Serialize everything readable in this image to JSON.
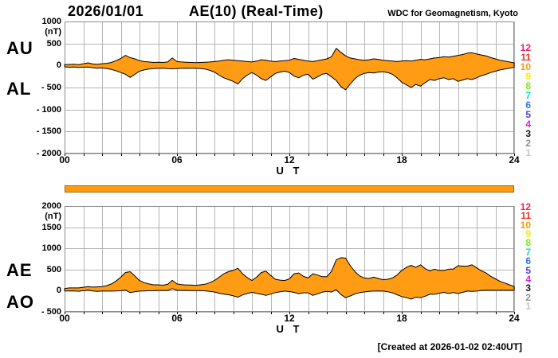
{
  "header": {
    "date": "2026/01/01",
    "title": "AE(10) (Real-Time)",
    "org": "WDC for Geomagnetism, Kyoto"
  },
  "footer": {
    "created": "[Created at 2026-01-02 02:40UT]"
  },
  "colors": {
    "band": "#FF9C14",
    "band_outline": "#000000",
    "grid": "#b4b4b4",
    "frame": "#8c8c8c",
    "bar_fill": "#FF9C14",
    "bar_border": "#a06800"
  },
  "station_scale": {
    "description": "number of reporting stations",
    "values": [
      "12",
      "11",
      "10",
      "9",
      "8",
      "7",
      "6",
      "5",
      "4",
      "3",
      "2",
      "1"
    ],
    "colors": [
      "#EE2266",
      "#F03018",
      "#FF9900",
      "#FFE800",
      "#7FE818",
      "#18D8C8",
      "#2878F0",
      "#5040D0",
      "#E818E8",
      "#181818",
      "#909090",
      "#C8C8C8"
    ],
    "active": "10"
  },
  "xaxis": {
    "label": "U T",
    "ticks": [
      {
        "h": 0,
        "label": "00"
      },
      {
        "h": 6,
        "label": "06"
      },
      {
        "h": 12,
        "label": "12"
      },
      {
        "h": 18,
        "label": "18"
      },
      {
        "h": 24,
        "label": "24"
      }
    ]
  },
  "panels": [
    {
      "name": "AU-AL",
      "unit": "(nT)",
      "left_labels": [
        "AU",
        "AL"
      ],
      "yticks": [
        {
          "v": 1000,
          "label": "1000"
        },
        {
          "v": 500,
          "label": "500"
        },
        {
          "v": 0,
          "label": "0"
        },
        {
          "v": -500,
          "label": "- 500"
        },
        {
          "v": -1000,
          "label": "- 1000"
        },
        {
          "v": -1500,
          "label": "- 1500"
        },
        {
          "v": -2000,
          "label": "- 2000"
        }
      ]
    },
    {
      "name": "AE-AO",
      "unit": "(nT)",
      "left_labels": [
        "AE",
        "AO"
      ],
      "yticks": [
        {
          "v": 2000,
          "label": "2000"
        },
        {
          "v": 1500,
          "label": "1500"
        },
        {
          "v": 1000,
          "label": "1000"
        },
        {
          "v": 500,
          "label": "500"
        },
        {
          "v": 0,
          "label": "0"
        },
        {
          "v": -500,
          "label": "- 500"
        }
      ]
    }
  ],
  "chart_data": [
    {
      "type": "area",
      "title": "AU and AL indices, 2026/01/01 (real-time, 10 stations)",
      "xlabel": "U T",
      "ylabel": "nT",
      "x_start": 0,
      "x_end": 24,
      "x_step": 0.25,
      "xlim": [
        0,
        24
      ],
      "ylim": [
        -2000,
        1000
      ],
      "ygrid_step": 500,
      "grid": true,
      "series": [
        {
          "name": "AU",
          "values": [
            20,
            25,
            30,
            20,
            40,
            60,
            35,
            30,
            40,
            50,
            70,
            110,
            160,
            230,
            180,
            150,
            110,
            90,
            80,
            70,
            75,
            70,
            80,
            170,
            90,
            80,
            75,
            70,
            65,
            70,
            75,
            80,
            90,
            100,
            120,
            130,
            120,
            110,
            100,
            90,
            80,
            100,
            130,
            120,
            100,
            90,
            100,
            110,
            120,
            160,
            140,
            120,
            100,
            90,
            110,
            130,
            150,
            200,
            390,
            300,
            220,
            170,
            150,
            130,
            120,
            130,
            150,
            140,
            120,
            110,
            100,
            90,
            100,
            110,
            100,
            120,
            140,
            130,
            150,
            170,
            180,
            200,
            190,
            210,
            230,
            250,
            280,
            290,
            260,
            240,
            220,
            180,
            150,
            120,
            100,
            80,
            60
          ]
        },
        {
          "name": "AL",
          "values": [
            -30,
            -40,
            -35,
            -45,
            -40,
            -35,
            -50,
            -60,
            -55,
            -70,
            -90,
            -120,
            -160,
            -200,
            -270,
            -200,
            -130,
            -100,
            -80,
            -70,
            -65,
            -60,
            -70,
            -75,
            -70,
            -65,
            -60,
            -65,
            -60,
            -70,
            -80,
            -110,
            -150,
            -220,
            -280,
            -320,
            -360,
            -420,
            -300,
            -220,
            -160,
            -220,
            -300,
            -340,
            -260,
            -180,
            -150,
            -130,
            -160,
            -240,
            -280,
            -220,
            -200,
            -310,
            -260,
            -200,
            -180,
            -260,
            -340,
            -480,
            -550,
            -420,
            -300,
            -220,
            -180,
            -160,
            -170,
            -150,
            -140,
            -160,
            -200,
            -280,
            -380,
            -440,
            -500,
            -430,
            -470,
            -390,
            -320,
            -340,
            -300,
            -280,
            -320,
            -300,
            -360,
            -330,
            -300,
            -320,
            -280,
            -230,
            -200,
            -160,
            -130,
            -100,
            -80,
            -60,
            -40
          ]
        }
      ]
    },
    {
      "type": "area",
      "title": "AE and AO indices, 2026/01/01 (real-time, 10 stations)",
      "xlabel": "U T",
      "ylabel": "nT",
      "x_start": 0,
      "x_end": 24,
      "x_step": 0.25,
      "xlim": [
        0,
        24
      ],
      "ylim": [
        -500,
        2000
      ],
      "ygrid_step": 500,
      "grid": true,
      "series": [
        {
          "name": "AE",
          "values": [
            50,
            65,
            65,
            65,
            80,
            95,
            85,
            90,
            95,
            120,
            160,
            230,
            320,
            430,
            450,
            350,
            240,
            190,
            160,
            140,
            140,
            130,
            150,
            245,
            160,
            145,
            135,
            135,
            125,
            140,
            155,
            190,
            240,
            320,
            400,
            450,
            480,
            530,
            400,
            310,
            240,
            320,
            430,
            460,
            360,
            270,
            250,
            240,
            280,
            400,
            420,
            340,
            300,
            400,
            370,
            330,
            330,
            460,
            730,
            780,
            770,
            590,
            450,
            350,
            300,
            290,
            320,
            290,
            260,
            270,
            300,
            370,
            480,
            550,
            600,
            550,
            610,
            520,
            470,
            510,
            480,
            480,
            510,
            510,
            590,
            580,
            580,
            610,
            540,
            470,
            420,
            340,
            280,
            220,
            180,
            140,
            100
          ]
        },
        {
          "name": "AO",
          "values": [
            -5,
            -8,
            -3,
            -13,
            0,
            13,
            -8,
            -15,
            -8,
            -10,
            -10,
            -5,
            0,
            15,
            -45,
            -25,
            -10,
            -5,
            0,
            0,
            5,
            5,
            5,
            48,
            10,
            8,
            8,
            3,
            3,
            0,
            -3,
            -15,
            -30,
            -60,
            -80,
            -95,
            -120,
            -155,
            -100,
            -65,
            -40,
            -60,
            -85,
            -110,
            -80,
            -45,
            -25,
            -10,
            -20,
            -40,
            -70,
            -50,
            -50,
            -110,
            -75,
            -35,
            -15,
            -30,
            25,
            -90,
            -165,
            -125,
            -75,
            -45,
            -30,
            -15,
            -10,
            -5,
            -10,
            -25,
            -50,
            -95,
            -140,
            -165,
            -200,
            -155,
            -165,
            -130,
            -85,
            -85,
            -60,
            -40,
            -65,
            -45,
            -65,
            -40,
            -10,
            -15,
            -10,
            5,
            10,
            10,
            10,
            10,
            10,
            10,
            10
          ]
        }
      ]
    }
  ]
}
